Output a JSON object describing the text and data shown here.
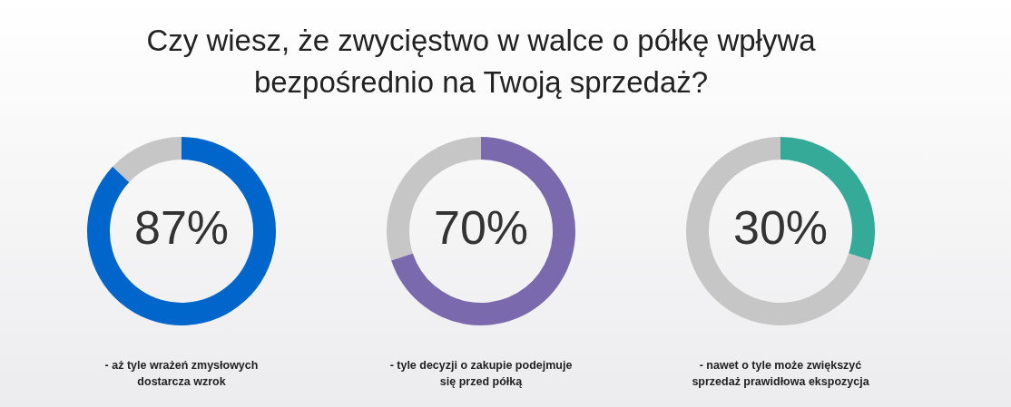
{
  "chart_data": [
    {
      "type": "other",
      "title": "Czy wiesz, że zwycięstwo w walce o półkę wpływa\nbezpośrednio na Twoją sprzedaż?"
    },
    {
      "type": "donut",
      "categories": [
        null,
        null
      ],
      "values": [
        87,
        13
      ],
      "colors": [
        "#0066cc",
        "#c6c6c6"
      ],
      "value_labels": [
        "87%",
        null
      ],
      "annotations": [
        "- aż tyle wrażeń zmysłowych\ndostarcza wzrok"
      ]
    },
    {
      "type": "donut",
      "categories": [
        null,
        null
      ],
      "values": [
        70,
        30
      ],
      "colors": [
        "#7b69ad",
        "#c6c6c6"
      ],
      "value_labels": [
        "70%",
        null
      ],
      "annotations": [
        "- tyle decyzji o zakupie podejmuje\nsię przed półką"
      ]
    },
    {
      "type": "donut",
      "categories": [
        null,
        null
      ],
      "values": [
        30,
        70
      ],
      "colors": [
        "#36aa99",
        "#c6c6c6"
      ],
      "value_labels": [
        "30%",
        null
      ],
      "annotations": [
        "- nawet o tyle może zwiększyć\nsprzedaż prawidłowa ekspozycja"
      ]
    }
  ]
}
